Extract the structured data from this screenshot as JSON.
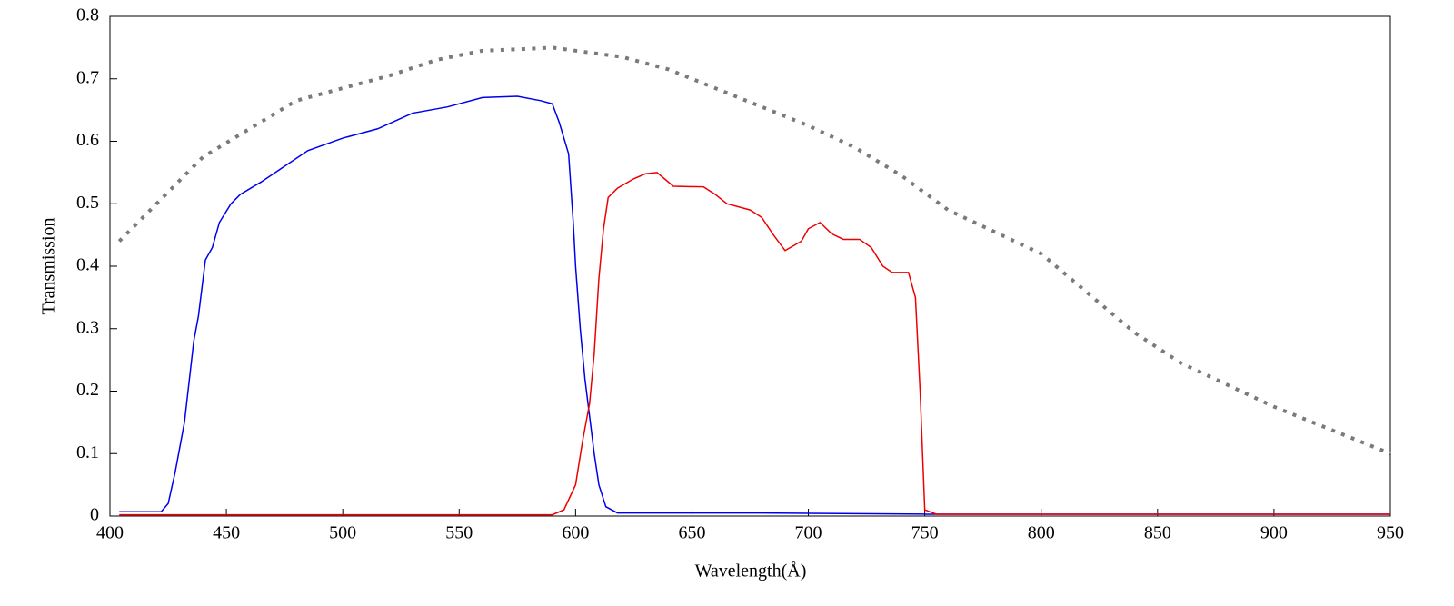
{
  "chart_data": {
    "type": "line",
    "xlabel": "Wavelength(Å)",
    "ylabel": "Transmission",
    "xlim": [
      400,
      950
    ],
    "xticks": [
      400,
      450,
      500,
      550,
      600,
      650,
      700,
      750,
      800,
      850,
      900,
      950
    ],
    "ylim": [
      0,
      0.8
    ],
    "yticks": [
      0,
      0.1,
      0.2,
      0.3,
      0.4,
      0.5,
      0.6,
      0.7,
      0.8
    ],
    "series": [
      {
        "color": "#7a7a7a",
        "style": "dotted",
        "x": [
          404,
          420,
          440,
          460,
          480,
          500,
          520,
          540,
          560,
          580,
          590,
          600,
          620,
          640,
          660,
          680,
          700,
          720,
          740,
          760,
          780,
          800,
          820,
          840,
          860,
          880,
          900,
          920,
          940,
          950
        ],
        "values": [
          0.44,
          0.5,
          0.575,
          0.62,
          0.665,
          0.685,
          0.705,
          0.73,
          0.745,
          0.748,
          0.75,
          0.745,
          0.735,
          0.715,
          0.685,
          0.655,
          0.625,
          0.59,
          0.545,
          0.49,
          0.455,
          0.42,
          0.357,
          0.294,
          0.245,
          0.21,
          0.175,
          0.145,
          0.115,
          0.1
        ]
      },
      {
        "color": "#0000ee",
        "style": "solid",
        "x": [
          404,
          422,
          425,
          428,
          432,
          436,
          438,
          441,
          444,
          447,
          452,
          456,
          465,
          475,
          485,
          500,
          515,
          530,
          545,
          560,
          575,
          585,
          590,
          593,
          597,
          599,
          600,
          602,
          604,
          606,
          608,
          610,
          613,
          618,
          680,
          750,
          950
        ],
        "values": [
          0.007,
          0.007,
          0.02,
          0.07,
          0.15,
          0.28,
          0.32,
          0.41,
          0.43,
          0.47,
          0.5,
          0.515,
          0.535,
          0.56,
          0.585,
          0.605,
          0.62,
          0.645,
          0.655,
          0.67,
          0.672,
          0.665,
          0.66,
          0.63,
          0.58,
          0.47,
          0.4,
          0.3,
          0.22,
          0.16,
          0.1,
          0.05,
          0.015,
          0.005,
          0.005,
          0.003,
          0.003
        ]
      },
      {
        "color": "#ee0000",
        "style": "solid",
        "x": [
          404,
          590,
          595,
          600,
          603,
          606,
          608,
          610,
          612,
          614,
          618,
          625,
          630,
          635,
          642,
          655,
          660,
          665,
          675,
          680,
          685,
          690,
          697,
          700,
          705,
          710,
          715,
          722,
          727,
          732,
          736,
          743,
          746,
          748,
          750,
          755,
          950
        ],
        "values": [
          0.002,
          0.002,
          0.01,
          0.05,
          0.12,
          0.18,
          0.26,
          0.38,
          0.46,
          0.51,
          0.525,
          0.54,
          0.548,
          0.55,
          0.528,
          0.527,
          0.515,
          0.5,
          0.49,
          0.478,
          0.45,
          0.425,
          0.44,
          0.46,
          0.47,
          0.452,
          0.443,
          0.443,
          0.43,
          0.4,
          0.39,
          0.39,
          0.35,
          0.2,
          0.01,
          0.003,
          0.003
        ]
      }
    ]
  }
}
